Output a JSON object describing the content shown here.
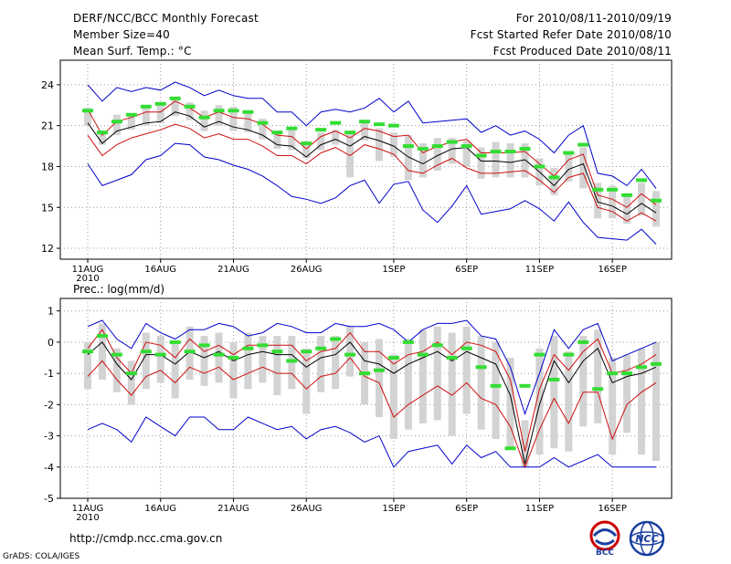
{
  "header": {
    "title": "DERF/NCC/BCC Monthly Forecast",
    "member_size": "Member Size=40",
    "variable": "Mean Surf. Temp.: °C",
    "period": "For 2010/08/11-2010/09/19",
    "started": "Fcst Started Refer Date 2010/08/10",
    "produced": "Fcst Produced Date 2010/08/11"
  },
  "footer": {
    "url": "http://cmdp.ncc.cma.gov.cn",
    "grads": "GrADS: COLA/IGES"
  },
  "logos": {
    "bcc": "BCC",
    "ncc": "NCC"
  },
  "colors": {
    "mean": "#000000",
    "spread": "#d01010",
    "extreme": "#0000cc",
    "box": "#d3d3d3",
    "observed": "#33dd33",
    "grid": "#999999"
  },
  "chart_data": [
    {
      "type": "line",
      "title": "Mean Surf. Temp.: °C",
      "xlabel": "",
      "ylabel": "°C",
      "x": [
        1,
        2,
        3,
        4,
        5,
        6,
        7,
        8,
        9,
        10,
        11,
        12,
        13,
        14,
        15,
        16,
        17,
        18,
        19,
        20,
        21,
        22,
        23,
        24,
        25,
        26,
        27,
        28,
        29,
        30,
        31,
        32,
        33,
        34,
        35,
        36,
        37,
        38,
        39,
        40
      ],
      "x_ticks": [
        {
          "x": 1,
          "label": "11AUG"
        },
        {
          "x": 6,
          "label": "16AUG"
        },
        {
          "x": 11,
          "label": "21AUG"
        },
        {
          "x": 16,
          "label": "26AUG"
        },
        {
          "x": 22,
          "label": "1SEP"
        },
        {
          "x": 27,
          "label": "6SEP"
        },
        {
          "x": 32,
          "label": "11SEP"
        },
        {
          "x": 37,
          "label": "16SEP"
        }
      ],
      "year_label": "2010",
      "ylim": [
        11.2,
        25.8
      ],
      "y_ticks": [
        12,
        15,
        18,
        21,
        24
      ],
      "series": [
        {
          "name": "ensemble max",
          "color": "blue",
          "values": [
            24.0,
            22.8,
            23.8,
            23.5,
            23.8,
            23.6,
            24.2,
            23.8,
            23.2,
            23.6,
            23.2,
            23.0,
            23.0,
            22.0,
            22.0,
            21.0,
            22.0,
            22.2,
            22.0,
            22.3,
            23.0,
            22.0,
            22.8,
            21.2,
            21.3,
            21.4,
            21.5,
            20.5,
            21.0,
            20.3,
            20.6,
            20.0,
            19.0,
            20.3,
            21.0,
            17.5,
            17.3,
            16.6,
            17.8,
            16.4
          ]
        },
        {
          "name": "mean plus spread",
          "color": "red",
          "values": [
            22.2,
            20.3,
            21.3,
            21.6,
            22.0,
            22.0,
            22.8,
            22.3,
            21.6,
            22.0,
            21.6,
            21.5,
            21.1,
            20.3,
            20.2,
            19.3,
            20.2,
            20.6,
            20.1,
            20.8,
            20.6,
            20.2,
            20.3,
            19.0,
            19.5,
            19.8,
            20.0,
            19.0,
            19.0,
            19.0,
            19.1,
            18.2,
            17.3,
            18.5,
            18.9,
            15.9,
            15.6,
            15.0,
            16.0,
            15.2
          ]
        },
        {
          "name": "ensemble mean",
          "color": "black",
          "values": [
            21.2,
            19.7,
            20.6,
            20.9,
            21.2,
            21.3,
            22.0,
            21.7,
            20.9,
            21.3,
            20.9,
            20.7,
            20.3,
            19.6,
            19.5,
            18.7,
            19.6,
            20.0,
            19.5,
            20.2,
            19.9,
            19.5,
            18.7,
            18.2,
            18.8,
            19.3,
            19.4,
            18.4,
            18.4,
            18.3,
            18.5,
            17.6,
            16.6,
            17.8,
            18.2,
            15.4,
            15.1,
            14.5,
            15.3,
            14.6
          ]
        },
        {
          "name": "mean minus spread",
          "color": "red",
          "values": [
            20.3,
            18.8,
            19.6,
            20.1,
            20.4,
            20.7,
            21.1,
            20.8,
            20.1,
            20.4,
            20.0,
            20.0,
            19.5,
            18.8,
            18.8,
            18.2,
            19.0,
            19.4,
            18.8,
            19.6,
            19.3,
            18.9,
            17.7,
            17.5,
            18.1,
            18.6,
            17.9,
            17.5,
            17.5,
            17.6,
            17.7,
            17.0,
            16.1,
            17.2,
            17.5,
            15.0,
            14.7,
            14.0,
            14.6,
            14.0
          ]
        },
        {
          "name": "ensemble min",
          "color": "blue",
          "values": [
            18.2,
            16.6,
            17.0,
            17.4,
            18.5,
            18.8,
            19.7,
            19.6,
            18.7,
            18.5,
            18.1,
            17.8,
            17.3,
            16.6,
            15.8,
            15.6,
            15.3,
            15.7,
            16.6,
            17.0,
            15.3,
            16.7,
            16.9,
            14.8,
            13.9,
            15.1,
            16.6,
            14.5,
            14.7,
            14.9,
            15.5,
            14.9,
            14.0,
            15.4,
            13.9,
            12.8,
            12.7,
            12.6,
            13.4,
            12.3
          ]
        }
      ],
      "box_low": [
        21.0,
        19.6,
        20.3,
        20.7,
        21.0,
        21.2,
        21.7,
        21.4,
        20.6,
        21.0,
        20.6,
        20.5,
        20.0,
        19.3,
        19.2,
        18.6,
        19.2,
        19.6,
        17.2,
        19.9,
        18.4,
        18.7,
        17.0,
        17.2,
        17.7,
        18.2,
        18.0,
        17.1,
        17.2,
        17.2,
        17.2,
        16.6,
        15.9,
        16.9,
        16.4,
        14.2,
        14.2,
        13.8,
        14.4,
        13.6
      ],
      "box_high": [
        22.3,
        20.6,
        21.8,
        21.9,
        22.5,
        22.6,
        23.0,
        22.7,
        22.1,
        22.5,
        22.4,
        22.0,
        21.5,
        20.6,
        20.7,
        19.7,
        20.5,
        20.7,
        20.6,
        21.3,
        20.8,
        20.5,
        20.3,
        19.7,
        20.1,
        20.1,
        19.9,
        19.4,
        19.8,
        19.7,
        19.7,
        18.6,
        17.9,
        19.0,
        19.4,
        16.8,
        16.6,
        15.9,
        16.8,
        16.2
      ],
      "observed": [
        22.1,
        20.5,
        21.3,
        21.8,
        22.4,
        22.6,
        23.0,
        22.4,
        21.6,
        22.1,
        22.1,
        22.0,
        21.2,
        20.5,
        20.8,
        19.7,
        20.7,
        21.2,
        20.5,
        21.3,
        21.1,
        21.0,
        19.5,
        19.3,
        19.5,
        19.8,
        19.5,
        18.8,
        19.1,
        19.1,
        19.3,
        18.0,
        17.2,
        19.0,
        19.6,
        16.3,
        16.3,
        15.9,
        17.0,
        15.5
      ]
    },
    {
      "type": "line",
      "title": "Prec.: log(mm/d)",
      "xlabel": "",
      "ylabel": "log(mm/d)",
      "x": [
        1,
        2,
        3,
        4,
        5,
        6,
        7,
        8,
        9,
        10,
        11,
        12,
        13,
        14,
        15,
        16,
        17,
        18,
        19,
        20,
        21,
        22,
        23,
        24,
        25,
        26,
        27,
        28,
        29,
        30,
        31,
        32,
        33,
        34,
        35,
        36,
        37,
        38,
        39,
        40
      ],
      "x_ticks": [
        {
          "x": 1,
          "label": "11AUG"
        },
        {
          "x": 6,
          "label": "16AUG"
        },
        {
          "x": 11,
          "label": "21AUG"
        },
        {
          "x": 16,
          "label": "26AUG"
        },
        {
          "x": 22,
          "label": "1SEP"
        },
        {
          "x": 27,
          "label": "6SEP"
        },
        {
          "x": 32,
          "label": "11SEP"
        },
        {
          "x": 37,
          "label": "16SEP"
        }
      ],
      "year_label": "2010",
      "ylim": [
        -5,
        1.4
      ],
      "y_ticks": [
        -5,
        -4,
        -3,
        -2,
        -1,
        0,
        1
      ],
      "series": [
        {
          "name": "ensemble max",
          "color": "blue",
          "values": [
            0.5,
            0.7,
            0.1,
            -0.2,
            0.6,
            0.3,
            0.1,
            0.4,
            0.4,
            0.6,
            0.5,
            0.2,
            0.3,
            0.6,
            0.5,
            0.3,
            0.3,
            0.6,
            0.5,
            0.5,
            0.6,
            0.4,
            0.0,
            0.4,
            0.6,
            0.6,
            0.7,
            0.2,
            0.1,
            -0.8,
            -2.3,
            -1.0,
            0.4,
            -0.2,
            0.4,
            0.6,
            -0.6,
            -0.4,
            -0.2,
            0.0
          ]
        },
        {
          "name": "mean plus spread",
          "color": "red",
          "values": [
            -0.2,
            0.4,
            -0.5,
            -1.0,
            0.0,
            -0.1,
            -0.5,
            0.1,
            -0.3,
            -0.1,
            -0.4,
            -0.1,
            -0.1,
            -0.1,
            -0.1,
            -0.6,
            -0.3,
            -0.2,
            0.3,
            -0.3,
            -0.3,
            -0.7,
            -0.4,
            -0.3,
            0.0,
            -0.4,
            0.0,
            -0.1,
            -0.3,
            -1.2,
            -3.5,
            -1.5,
            -0.4,
            -0.9,
            -0.3,
            0.1,
            -1.0,
            -0.9,
            -0.7,
            -0.4
          ]
        },
        {
          "name": "ensemble mean",
          "color": "black",
          "values": [
            -0.4,
            0.0,
            -0.7,
            -1.2,
            -0.4,
            -0.4,
            -0.7,
            -0.3,
            -0.5,
            -0.3,
            -0.6,
            -0.4,
            -0.3,
            -0.4,
            -0.4,
            -0.8,
            -0.5,
            -0.4,
            0.0,
            -0.6,
            -0.7,
            -1.0,
            -0.7,
            -0.5,
            -0.3,
            -0.6,
            -0.3,
            -0.5,
            -0.7,
            -1.7,
            -3.9,
            -2.0,
            -0.6,
            -1.3,
            -0.6,
            -0.2,
            -1.3,
            -1.1,
            -1.0,
            -0.8
          ]
        },
        {
          "name": "mean minus spread",
          "color": "red",
          "values": [
            -1.1,
            -0.6,
            -1.2,
            -1.7,
            -1.1,
            -0.9,
            -1.3,
            -0.8,
            -1.0,
            -0.8,
            -1.2,
            -1.0,
            -0.8,
            -1.0,
            -1.0,
            -1.5,
            -1.1,
            -1.0,
            -0.5,
            -1.1,
            -1.3,
            -2.4,
            -2.0,
            -1.7,
            -1.4,
            -1.7,
            -1.3,
            -1.8,
            -2.0,
            -2.7,
            -4.0,
            -2.8,
            -1.8,
            -2.6,
            -1.6,
            -1.6,
            -3.1,
            -2.0,
            -1.6,
            -1.3
          ]
        },
        {
          "name": "ensemble min",
          "color": "blue",
          "values": [
            -2.8,
            -2.6,
            -2.8,
            -3.2,
            -2.4,
            -2.7,
            -3.0,
            -2.4,
            -2.4,
            -2.8,
            -2.8,
            -2.4,
            -2.6,
            -2.8,
            -2.7,
            -3.1,
            -2.8,
            -2.7,
            -2.9,
            -3.2,
            -3.0,
            -4.0,
            -3.5,
            -3.4,
            -3.3,
            -3.9,
            -3.3,
            -3.7,
            -3.5,
            -4.0,
            -4.0,
            -4.0,
            -3.7,
            -4.0,
            -3.8,
            -3.6,
            -4.0,
            -4.0,
            -4.0,
            -4.0
          ]
        },
        {
          "name": "observed",
          "color": "green",
          "values": [
            -0.3,
            0.2,
            -0.4,
            -1.0,
            -0.3,
            -0.4,
            0.0,
            -0.3,
            -0.1,
            -0.4,
            -0.5,
            -0.2,
            -0.1,
            -0.3,
            -0.6,
            -0.3,
            -0.2,
            0.1,
            -0.4,
            -1.0,
            -0.9,
            -0.5,
            0.0,
            -0.4,
            -0.1,
            -0.5,
            -0.2,
            -0.8,
            -1.4,
            -3.4,
            -1.4,
            -0.4,
            -1.2,
            -0.4,
            0.0,
            -1.5,
            -1.0,
            -1.0,
            -0.8,
            -0.7
          ]
        }
      ],
      "box_low": [
        -1.5,
        -1.2,
        -1.6,
        -2.0,
        -1.5,
        -1.3,
        -1.8,
        -1.2,
        -1.4,
        -1.3,
        -1.8,
        -1.5,
        -1.3,
        -1.7,
        -1.5,
        -2.3,
        -1.6,
        -1.5,
        -1.1,
        -2.0,
        -2.4,
        -3.1,
        -2.8,
        -2.6,
        -2.5,
        -3.0,
        -2.3,
        -2.8,
        -3.1,
        -3.4,
        -4.0,
        -3.6,
        -3.4,
        -3.5,
        -2.7,
        -2.6,
        -3.6,
        -2.9,
        -3.6,
        -3.8
      ],
      "box_high": [
        0.0,
        0.6,
        -0.2,
        -0.6,
        0.3,
        0.2,
        0.0,
        0.5,
        0.2,
        0.3,
        0.0,
        0.3,
        0.2,
        0.2,
        0.2,
        -0.2,
        0.2,
        0.2,
        0.5,
        0.0,
        0.1,
        -0.4,
        0.1,
        0.4,
        0.5,
        0.3,
        0.5,
        0.2,
        0.0,
        -0.5,
        -2.5,
        -0.2,
        0.2,
        -0.3,
        0.2,
        0.4,
        -0.5,
        -0.4,
        -0.2,
        0.0
      ]
    }
  ]
}
